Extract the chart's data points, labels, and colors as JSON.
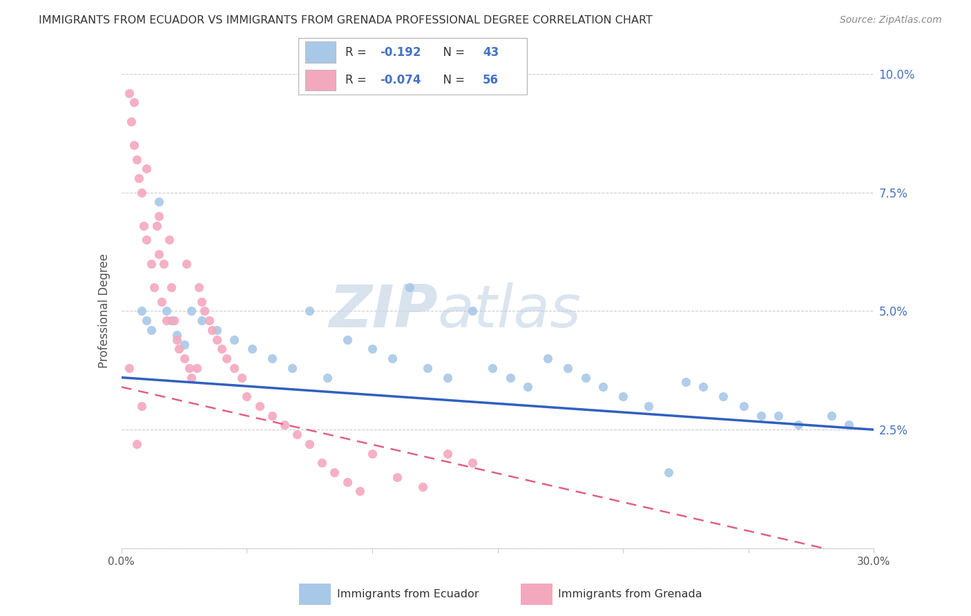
{
  "title": "IMMIGRANTS FROM ECUADOR VS IMMIGRANTS FROM GRENADA PROFESSIONAL DEGREE CORRELATION CHART",
  "source": "Source: ZipAtlas.com",
  "ylabel": "Professional Degree",
  "xlim": [
    0.0,
    0.3
  ],
  "ylim": [
    0.0,
    0.1
  ],
  "ecuador_color": "#a8c8e8",
  "grenada_color": "#f4a8be",
  "ecuador_line_color": "#3060c0",
  "grenada_line_color": "#e06080",
  "legend_label_ecuador": "Immigrants from Ecuador",
  "legend_label_grenada": "Immigrants from Grenada",
  "R_ecuador": -0.192,
  "N_ecuador": 43,
  "R_grenada": -0.074,
  "N_grenada": 56,
  "watermark_zip": "ZIP",
  "watermark_atlas": "atlas",
  "background_color": "#ffffff",
  "grid_color": "#cccccc",
  "ecuador_x": [
    0.008,
    0.01,
    0.012,
    0.015,
    0.018,
    0.02,
    0.022,
    0.025,
    0.028,
    0.032,
    0.038,
    0.045,
    0.052,
    0.06,
    0.068,
    0.075,
    0.082,
    0.09,
    0.1,
    0.108,
    0.115,
    0.122,
    0.13,
    0.14,
    0.148,
    0.155,
    0.162,
    0.17,
    0.178,
    0.185,
    0.192,
    0.2,
    0.21,
    0.218,
    0.225,
    0.232,
    0.24,
    0.248,
    0.255,
    0.262,
    0.27,
    0.283,
    0.29
  ],
  "ecuador_y": [
    0.05,
    0.048,
    0.046,
    0.073,
    0.05,
    0.048,
    0.045,
    0.043,
    0.05,
    0.048,
    0.046,
    0.044,
    0.042,
    0.04,
    0.038,
    0.05,
    0.036,
    0.044,
    0.042,
    0.04,
    0.055,
    0.038,
    0.036,
    0.05,
    0.038,
    0.036,
    0.034,
    0.04,
    0.038,
    0.036,
    0.034,
    0.032,
    0.03,
    0.016,
    0.035,
    0.034,
    0.032,
    0.03,
    0.028,
    0.028,
    0.026,
    0.028,
    0.026
  ],
  "grenada_x": [
    0.003,
    0.004,
    0.005,
    0.005,
    0.006,
    0.007,
    0.008,
    0.009,
    0.01,
    0.01,
    0.012,
    0.013,
    0.014,
    0.015,
    0.015,
    0.016,
    0.017,
    0.018,
    0.019,
    0.02,
    0.021,
    0.022,
    0.023,
    0.025,
    0.026,
    0.027,
    0.028,
    0.03,
    0.031,
    0.032,
    0.033,
    0.035,
    0.036,
    0.038,
    0.04,
    0.042,
    0.045,
    0.048,
    0.05,
    0.055,
    0.06,
    0.065,
    0.07,
    0.075,
    0.08,
    0.085,
    0.09,
    0.095,
    0.1,
    0.11,
    0.12,
    0.13,
    0.14,
    0.003,
    0.006,
    0.008
  ],
  "grenada_y": [
    0.096,
    0.09,
    0.085,
    0.094,
    0.082,
    0.078,
    0.075,
    0.068,
    0.065,
    0.08,
    0.06,
    0.055,
    0.068,
    0.062,
    0.07,
    0.052,
    0.06,
    0.048,
    0.065,
    0.055,
    0.048,
    0.044,
    0.042,
    0.04,
    0.06,
    0.038,
    0.036,
    0.038,
    0.055,
    0.052,
    0.05,
    0.048,
    0.046,
    0.044,
    0.042,
    0.04,
    0.038,
    0.036,
    0.032,
    0.03,
    0.028,
    0.026,
    0.024,
    0.022,
    0.018,
    0.016,
    0.014,
    0.012,
    0.02,
    0.015,
    0.013,
    0.02,
    0.018,
    0.038,
    0.022,
    0.03
  ],
  "ec_line_x0": 0.0,
  "ec_line_y0": 0.036,
  "ec_line_x1": 0.3,
  "ec_line_y1": 0.025,
  "gr_line_x0": 0.0,
  "gr_line_y0": 0.034,
  "gr_line_x1": 0.28,
  "gr_line_y1": 0.0
}
